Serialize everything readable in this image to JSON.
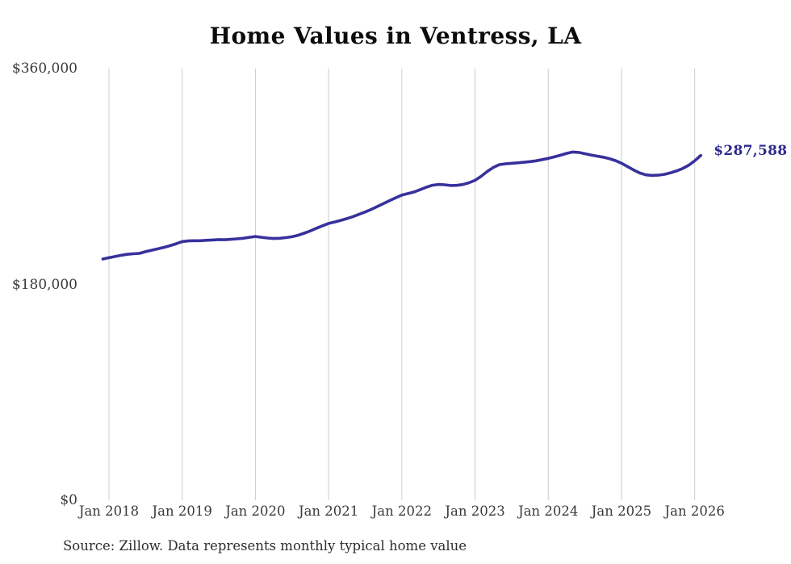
{
  "title": "Home Values in Ventress, LA",
  "source_note": "Source: Zillow. Data represents monthly typical home value",
  "end_label": "$287,588",
  "colors": {
    "line": "#37319c",
    "end_label": "#2d2a90",
    "grid": "#cccccc",
    "axis_text": "#3a3a3a",
    "title_text": "#0c0c0c",
    "background": "#ffffff"
  },
  "chart_data": {
    "type": "line",
    "title": "Home Values in Ventress, LA",
    "xlabel": "",
    "ylabel": "",
    "ylim": [
      0,
      360000
    ],
    "y_tick_labels": [
      "$0",
      "$180,000",
      "$360,000"
    ],
    "x_tick_labels": [
      "Jan 2018",
      "Jan 2019",
      "Jan 2020",
      "Jan 2021",
      "Jan 2022",
      "Jan 2023",
      "Jan 2024",
      "Jan 2025",
      "Jan 2026"
    ],
    "grid": "vertical-only",
    "legend_position": "none",
    "final_value": 287588,
    "series": [
      {
        "name": "Monthly typical home value",
        "start_month": "2017-12",
        "interval": "monthly",
        "values": [
          201200,
          202300,
          203300,
          204300,
          205100,
          205600,
          205900,
          207300,
          208500,
          209700,
          210900,
          212300,
          213900,
          215700,
          216300,
          216500,
          216500,
          216800,
          217100,
          217400,
          217300,
          217600,
          218000,
          218500,
          219300,
          220000,
          219300,
          218700,
          218300,
          218500,
          219000,
          219800,
          221000,
          222700,
          224600,
          226800,
          228900,
          230900,
          232100,
          233400,
          234900,
          236600,
          238500,
          240400,
          242600,
          245000,
          247400,
          249900,
          252300,
          254500,
          255800,
          257100,
          259000,
          261000,
          262700,
          263400,
          263100,
          262500,
          262600,
          263300,
          264800,
          266800,
          270200,
          274200,
          277600,
          279900,
          280600,
          281000,
          281400,
          281900,
          282400,
          283100,
          284100,
          285100,
          286400,
          287700,
          289300,
          290400,
          290100,
          289000,
          287900,
          287000,
          286100,
          284900,
          283300,
          281100,
          278300,
          275400,
          272900,
          271400,
          270900,
          271100,
          271800,
          273000,
          274600,
          276600,
          279300,
          283100,
          287588
        ]
      }
    ]
  }
}
